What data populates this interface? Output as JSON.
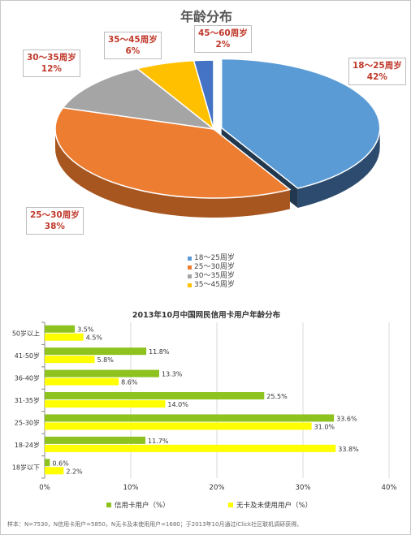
{
  "chart_data": [
    {
      "type": "pie",
      "title": "年龄分布",
      "slices": [
        {
          "label": "18～25周岁",
          "value": 42,
          "value_label": "42%",
          "color": "#5b9bd5",
          "side": "#2c4b6e"
        },
        {
          "label": "25～30周岁",
          "value": 38,
          "value_label": "38%",
          "color": "#ed7d31",
          "side": "#a8561f"
        },
        {
          "label": "30～35周岁",
          "value": 12,
          "value_label": "12%",
          "color": "#a5a5a5",
          "side": "#6e6e6e"
        },
        {
          "label": "35～45周岁",
          "value": 6,
          "value_label": "6%",
          "color": "#ffc000",
          "side": "#b38600"
        },
        {
          "label": "45～60周岁",
          "value": 2,
          "value_label": "2%",
          "color": "#4472c4",
          "side": "#2a4780"
        }
      ],
      "legend": [
        "18～25周岁",
        "25～30周岁",
        "30～35周岁",
        "35～45周岁"
      ],
      "legend_colors": [
        "#5b9bd5",
        "#ed7d31",
        "#a5a5a5",
        "#ffc000"
      ]
    },
    {
      "type": "bar",
      "orientation": "horizontal",
      "title": "2013年10月中国网民信用卡用户年龄分布",
      "categories": [
        "50岁以上",
        "41-50岁",
        "36-40岁",
        "31-35岁",
        "25-30岁",
        "18-24岁",
        "18岁以下"
      ],
      "series": [
        {
          "name": "信用卡用户（%）",
          "color": "#8dc21f",
          "values": [
            3.5,
            11.8,
            13.3,
            25.5,
            33.6,
            11.7,
            0.6
          ]
        },
        {
          "name": "无卡及未使用用户（%）",
          "color": "#ffff00",
          "values": [
            4.5,
            5.8,
            8.6,
            14.0,
            31.0,
            33.8,
            2.2
          ]
        }
      ],
      "xlim": [
        0,
        40
      ],
      "xticks": [
        "0%",
        "10%",
        "20%",
        "30%",
        "40%"
      ],
      "legend_position": "bottom"
    }
  ],
  "footnote": "样本：N=7530，N信用卡用户=5850，N无卡及未使用用户=1680；于2013年10月通过iClick社区联机调研获得。"
}
